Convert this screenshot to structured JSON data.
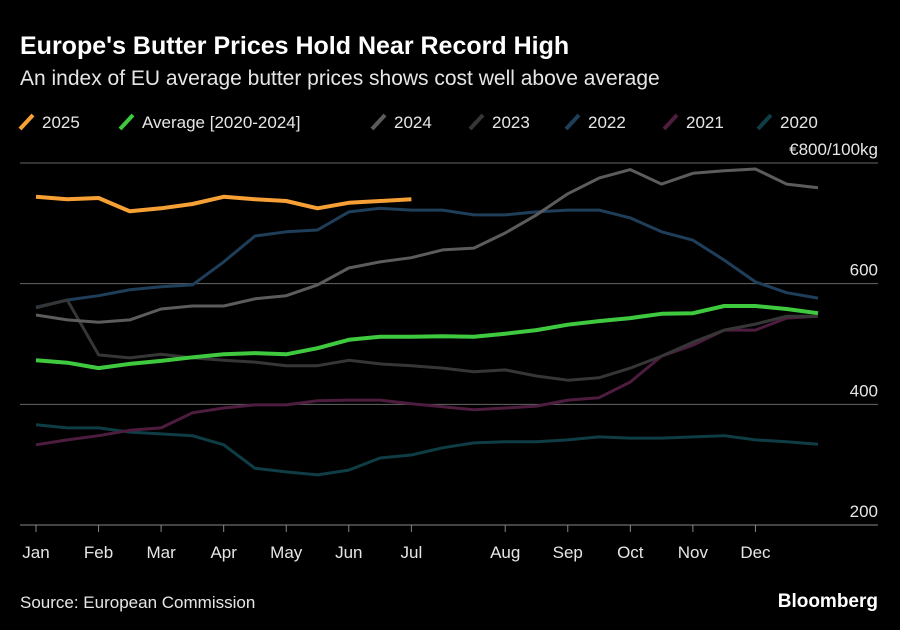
{
  "chart_data": {
    "type": "line",
    "title": "Europe's Butter Prices Hold Near Record High",
    "subtitle": "An index of EU average butter prices shows cost well above average",
    "source": "Source: European Commission",
    "logo": "Bloomberg",
    "categories": [
      "Jan",
      null,
      "Feb",
      null,
      "Mar",
      null,
      "Apr",
      null,
      "May",
      null,
      "Jun",
      null,
      "Jul",
      null,
      null,
      "Aug",
      null,
      "Sep",
      null,
      "Oct",
      null,
      "Nov",
      null,
      "Dec",
      null,
      null
    ],
    "ylim": [
      200,
      800
    ],
    "yticks": [
      200,
      400,
      600,
      {
        "value": 800,
        "label": "€800/100kg"
      }
    ],
    "grid": true,
    "series": [
      {
        "name": "2025",
        "color": "#f7a035",
        "values": [
          744,
          740,
          742,
          720,
          725,
          732,
          744,
          740,
          737,
          725,
          734,
          737,
          740,
          null,
          null,
          null,
          null,
          null,
          null,
          null,
          null,
          null,
          null,
          null,
          null,
          null
        ]
      },
      {
        "name": "Average [2020-2024]",
        "color": "#3fc93f",
        "values": [
          473,
          469,
          460,
          467,
          472,
          478,
          483,
          485,
          483,
          493,
          507,
          512,
          512,
          513,
          512,
          517,
          523,
          532,
          538,
          543,
          550,
          551,
          563,
          563,
          558,
          551
        ]
      },
      {
        "name": "2024",
        "color": "#5c5c5c",
        "values": [
          548,
          540,
          536,
          540,
          558,
          563,
          563,
          575,
          580,
          598,
          626,
          636,
          643,
          656,
          659,
          684,
          714,
          749,
          775,
          789,
          765,
          783,
          787,
          790,
          765,
          759
        ]
      },
      {
        "name": "2023",
        "color": "#363636",
        "values": [
          560,
          573,
          482,
          477,
          483,
          477,
          473,
          470,
          464,
          464,
          473,
          467,
          464,
          460,
          454,
          457,
          447,
          440,
          444,
          460,
          480,
          503,
          523,
          533,
          546,
          546
        ]
      },
      {
        "name": "2022",
        "color": "#1f3e5a",
        "values": [
          561,
          573,
          580,
          590,
          595,
          598,
          636,
          679,
          686,
          689,
          719,
          725,
          722,
          722,
          714,
          714,
          719,
          722,
          722,
          709,
          686,
          672,
          639,
          603,
          585,
          576
        ]
      },
      {
        "name": "2021",
        "color": "#4d1c3f",
        "values": [
          333,
          341,
          348,
          357,
          361,
          386,
          394,
          399,
          399,
          406,
          407,
          407,
          401,
          396,
          391,
          394,
          397,
          407,
          411,
          437,
          480,
          498,
          523,
          523,
          543,
          546
        ]
      },
      {
        "name": "2020",
        "color": "#0e3d45",
        "values": [
          366,
          361,
          361,
          354,
          351,
          348,
          333,
          294,
          288,
          283,
          291,
          311,
          316,
          328,
          336,
          338,
          338,
          341,
          346,
          344,
          344,
          346,
          348,
          341,
          338,
          334
        ]
      }
    ]
  }
}
